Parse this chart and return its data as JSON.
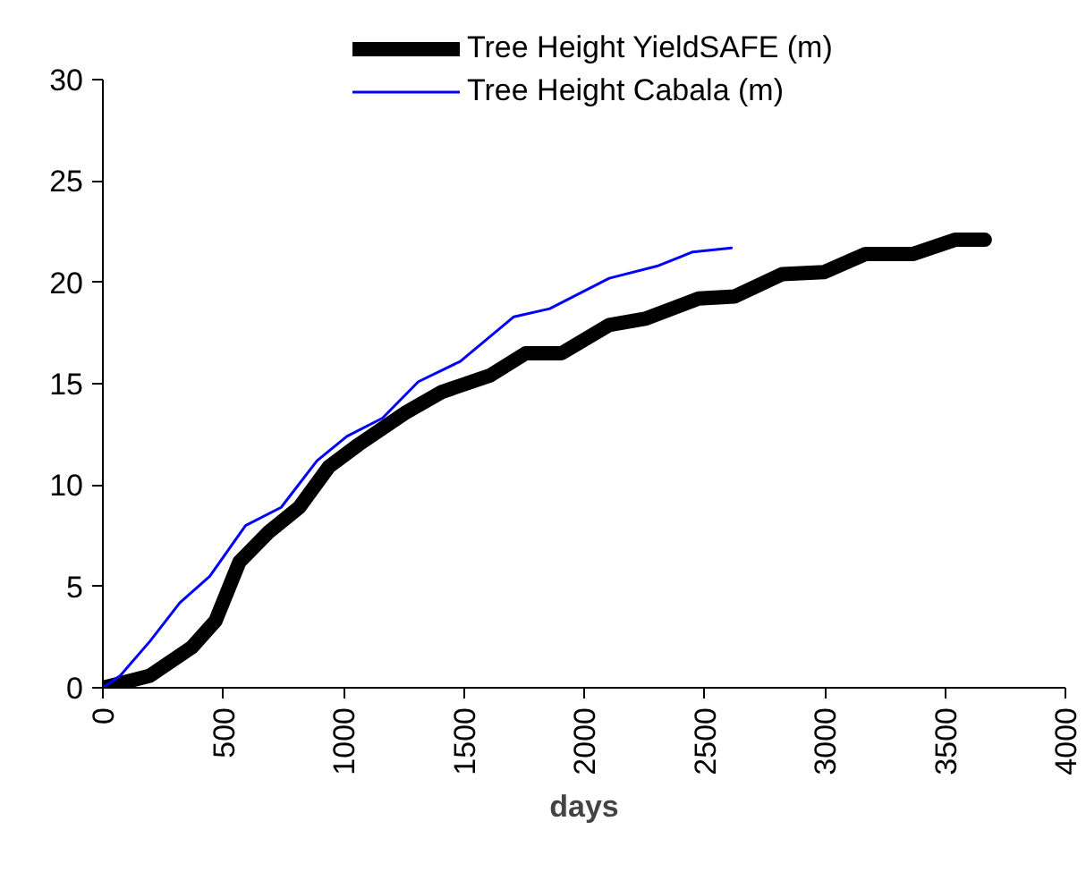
{
  "chart_data": {
    "type": "line",
    "xlabel": "days",
    "xlim": [
      0,
      4000
    ],
    "xticks": [
      0,
      500,
      1000,
      1500,
      2000,
      2500,
      3000,
      3500,
      4000
    ],
    "ylim": [
      0,
      30
    ],
    "yticks": [
      0,
      5,
      10,
      15,
      20,
      25,
      30
    ],
    "grid": false,
    "legend": "top",
    "marker": "none",
    "series": [
      {
        "name": "Tree Height YieldSAFE (m)",
        "color": "#000000",
        "line_style": "solid",
        "x": [
          0,
          196,
          370,
          468,
          567,
          691,
          816,
          939,
          1063,
          1262,
          1410,
          1608,
          1757,
          1906,
          2104,
          2253,
          2476,
          2625,
          2823,
          2996,
          3170,
          3368,
          3541,
          3665
        ],
        "values": [
          0,
          0.6,
          2.0,
          3.3,
          6.2,
          7.7,
          8.9,
          10.9,
          12.0,
          13.6,
          14.6,
          15.4,
          16.5,
          16.5,
          17.9,
          18.2,
          19.2,
          19.3,
          20.4,
          20.5,
          21.4,
          21.4,
          22.1,
          22.1
        ]
      },
      {
        "name": "Tree Height Cabala (m)",
        "color": "#0000ff",
        "line_style": "solid",
        "x": [
          0,
          72,
          196,
          320,
          444,
          593,
          741,
          890,
          1014,
          1162,
          1311,
          1485,
          1708,
          1857,
          2104,
          2303,
          2451,
          2612
        ],
        "values": [
          0,
          0.6,
          2.3,
          4.2,
          5.5,
          8.0,
          8.9,
          11.2,
          12.4,
          13.3,
          15.1,
          16.1,
          18.3,
          18.7,
          20.2,
          20.8,
          21.5,
          21.7
        ]
      }
    ]
  }
}
